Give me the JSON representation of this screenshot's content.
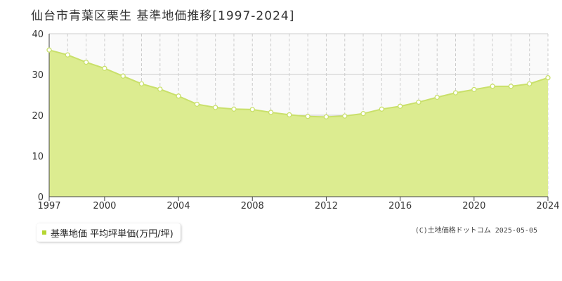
{
  "chart_title": "仙台市青葉区栗生 基準地価推移[1997-2024]",
  "legend_label": "基準地価 平均坪単価(万円/坪)",
  "credit": "(C)土地価格ドットコム 2025-05-05",
  "colors": {
    "area_fill": "#dcec90",
    "line": "#c9e06a",
    "marker_fill": "#ffffff",
    "grid": "#cccccc",
    "plot_bg_top": "#fafafa",
    "legend_swatch": "#b5d632"
  },
  "chart_data": {
    "type": "area",
    "title": "仙台市青葉区栗生 基準地価推移[1997-2024]",
    "xlabel": "",
    "ylabel": "",
    "xlim": [
      1997,
      2024
    ],
    "ylim": [
      0,
      40
    ],
    "x_ticks": [
      1997,
      2000,
      2004,
      2008,
      2012,
      2016,
      2020,
      2024
    ],
    "y_ticks": [
      0,
      10,
      20,
      30,
      40
    ],
    "grid": true,
    "legend_position": "bottom-left",
    "series": [
      {
        "name": "基準地価 平均坪単価(万円/坪)",
        "x": [
          1997,
          1998,
          1999,
          2000,
          2001,
          2002,
          2003,
          2004,
          2005,
          2006,
          2007,
          2008,
          2009,
          2010,
          2011,
          2012,
          2013,
          2014,
          2015,
          2016,
          2017,
          2018,
          2019,
          2020,
          2021,
          2022,
          2023,
          2024
        ],
        "values": [
          36.0,
          34.8,
          33.0,
          31.5,
          29.6,
          27.7,
          26.4,
          24.7,
          22.7,
          21.9,
          21.5,
          21.4,
          20.7,
          20.1,
          19.7,
          19.6,
          19.8,
          20.4,
          21.5,
          22.2,
          23.2,
          24.4,
          25.5,
          26.3,
          27.1,
          27.1,
          27.7,
          29.2
        ]
      }
    ]
  }
}
